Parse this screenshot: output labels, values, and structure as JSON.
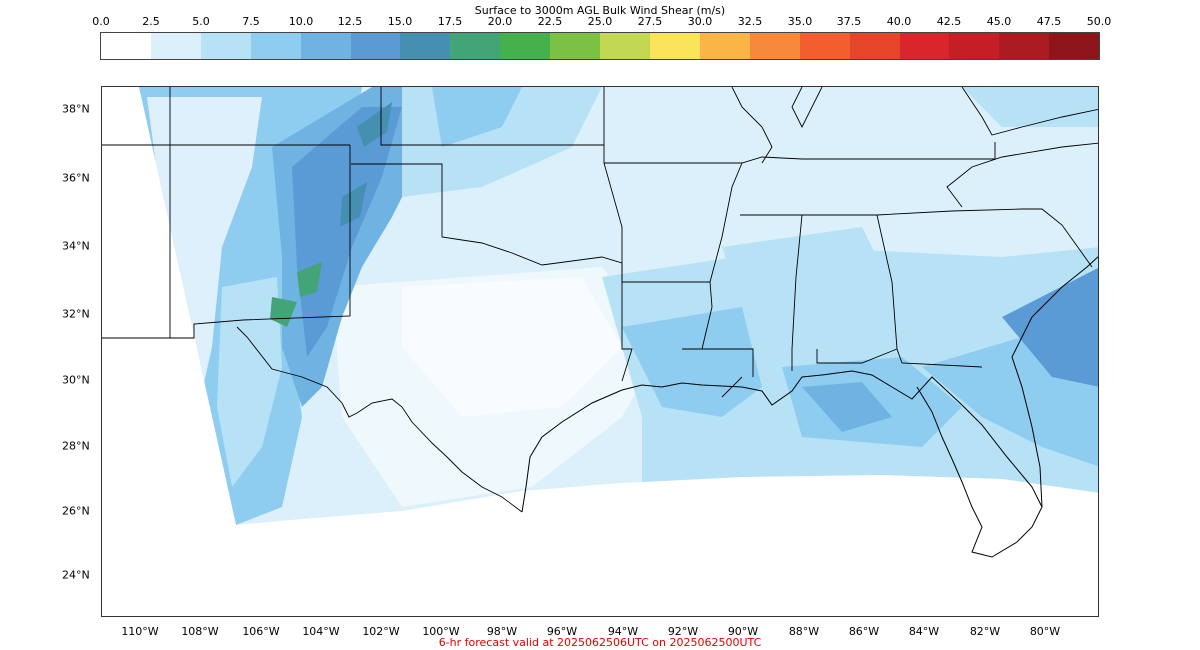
{
  "colorbar": {
    "title": "Surface to 3000m AGL Bulk Wind Shear (m/s)",
    "ticks": [
      "0.0",
      "2.5",
      "5.0",
      "7.5",
      "10.0",
      "12.5",
      "15.0",
      "17.5",
      "20.0",
      "22.5",
      "25.0",
      "27.5",
      "30.0",
      "32.5",
      "35.0",
      "37.5",
      "40.0",
      "42.5",
      "45.0",
      "47.5",
      "50.0"
    ],
    "colors": [
      "#ffffff",
      "#dcf0fb",
      "#b7e2f6",
      "#8ecdf0",
      "#6fb3e2",
      "#5a9bd6",
      "#4590b0",
      "#42a477",
      "#44b14d",
      "#7cc143",
      "#c2d853",
      "#f9e45a",
      "#fbb446",
      "#f7893a",
      "#f15f2e",
      "#e54529",
      "#d8262a",
      "#c41e26",
      "#ab1c22",
      "#8e161b"
    ]
  },
  "map": {
    "lat_labels": [
      "38°N",
      "36°N",
      "34°N",
      "32°N",
      "30°N",
      "28°N",
      "26°N",
      "24°N"
    ],
    "lon_labels": [
      "110°W",
      "108°W",
      "106°W",
      "104°W",
      "102°W",
      "100°W",
      "98°W",
      "96°W",
      "94°W",
      "92°W",
      "90°W",
      "88°W",
      "86°W",
      "84°W",
      "82°W",
      "80°W"
    ]
  },
  "footer": "6-hr forecast valid at 2025062506UTC on 2025062500UTC"
}
